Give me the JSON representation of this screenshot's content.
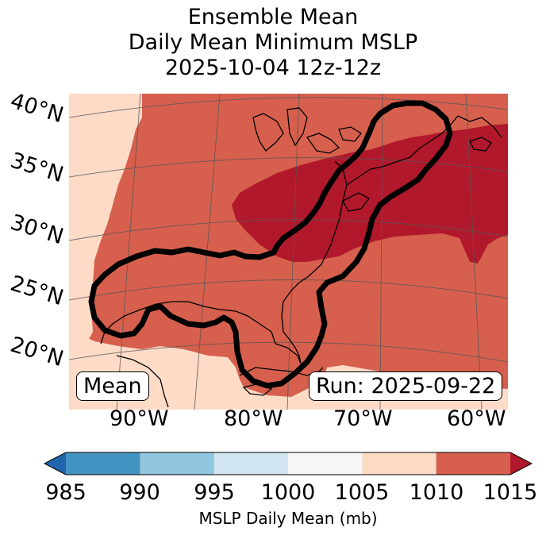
{
  "title": {
    "line1": "Ensemble Mean",
    "line2": "Daily Mean Minimum MSLP",
    "line3": "2025-10-04 12z-12z"
  },
  "map": {
    "latitudes": [
      "40°N",
      "35°N",
      "30°N",
      "25°N",
      "20°N"
    ],
    "longitudes": [
      "90°W",
      "80°W",
      "70°W",
      "60°W"
    ],
    "mean_label": "Mean",
    "run_label": "Run: 2025-09-22",
    "colors": {
      "band_1005_1010": "#fddbc7",
      "band_1010_1015": "#d6604d",
      "band_above_1015": "#b2182b",
      "contour": "#000000",
      "gridline": "#555555"
    }
  },
  "colorbar": {
    "title": "MSLP Daily Mean (mb)",
    "ticks": [
      "985",
      "990",
      "995",
      "1000",
      "1005",
      "1010",
      "1015"
    ],
    "under_color": "#2166ac",
    "bins": [
      "#4393c3",
      "#92c5de",
      "#d1e5f0",
      "#f7f7f7",
      "#fddbc7",
      "#d6604d"
    ],
    "over_color": "#b2182b"
  }
}
